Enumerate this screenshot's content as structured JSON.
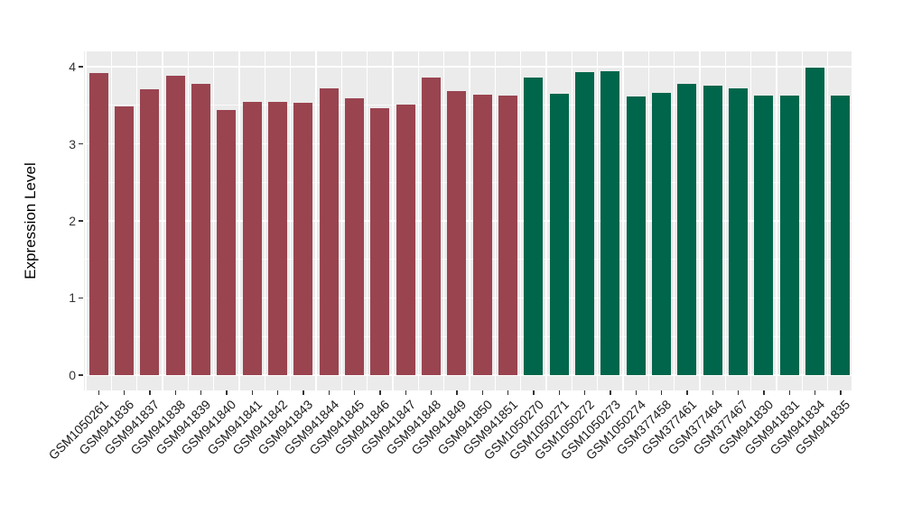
{
  "chart_data": {
    "type": "bar",
    "title": "",
    "xlabel": "",
    "ylabel": "Expression Level",
    "ylim": [
      -0.2,
      4.2
    ],
    "yticks": [
      0,
      1,
      2,
      3,
      4
    ],
    "legend_position": "none",
    "panel_background": "#EBEBEB",
    "grid_color": "#FFFFFF",
    "axis_text_color": "#333333",
    "categories": [
      "GSM1050261",
      "GSM941836",
      "GSM941837",
      "GSM941838",
      "GSM941839",
      "GSM941840",
      "GSM941841",
      "GSM941842",
      "GSM941843",
      "GSM941844",
      "GSM941845",
      "GSM941846",
      "GSM941847",
      "GSM941848",
      "GSM941849",
      "GSM941850",
      "GSM941851",
      "GSM1050270",
      "GSM1050271",
      "GSM1050272",
      "GSM1050273",
      "GSM1050274",
      "GSM377458",
      "GSM377461",
      "GSM377464",
      "GSM377467",
      "GSM941830",
      "GSM941831",
      "GSM941834",
      "GSM941835"
    ],
    "values": [
      3.92,
      3.49,
      3.71,
      3.88,
      3.78,
      3.44,
      3.54,
      3.55,
      3.53,
      3.72,
      3.59,
      3.46,
      3.51,
      3.86,
      3.68,
      3.64,
      3.63,
      3.86,
      3.65,
      3.93,
      3.94,
      3.62,
      3.66,
      3.78,
      3.76,
      3.72,
      3.63,
      3.63,
      3.99,
      3.63
    ],
    "bar_groups": [
      "group1",
      "group1",
      "group1",
      "group1",
      "group1",
      "group1",
      "group1",
      "group1",
      "group1",
      "group1",
      "group1",
      "group1",
      "group1",
      "group1",
      "group1",
      "group1",
      "group1",
      "group2",
      "group2",
      "group2",
      "group2",
      "group2",
      "group2",
      "group2",
      "group2",
      "group2",
      "group2",
      "group2",
      "group2",
      "group2"
    ],
    "palette": {
      "group1": "#9A4450",
      "group2": "#00664B"
    }
  }
}
